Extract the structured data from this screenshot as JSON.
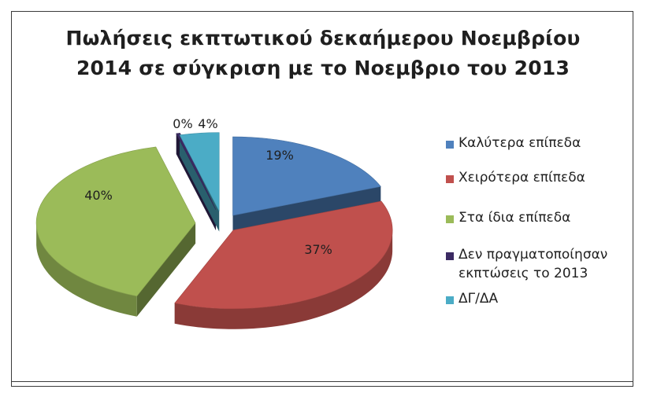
{
  "chart_data": {
    "type": "pie",
    "title_lines": [
      "Πωλήσεις εκπτωτικού δεκαήμερου Νοεμβρίου",
      "2014 σε σύγκριση με το Νοεμβριο του 2013"
    ],
    "labels": [
      "Καλύτερα επίπεδα",
      "Χειρότερα επίπεδα",
      "Στα ίδια επίπεδα",
      "Δεν πραγματοποίησαν εκπτώσεις το 2013",
      "ΔΓ/ΔΑ"
    ],
    "legend_lines": [
      [
        "Καλύτερα επίπεδα"
      ],
      [
        "Χειρότερα επίπεδα"
      ],
      [
        "Στα ίδια επίπεδα"
      ],
      [
        "Δεν πραγματοποίησαν",
        "εκπτώσεις το 2013"
      ],
      [
        "ΔΓ/ΔΑ"
      ]
    ],
    "values": [
      19,
      37,
      40,
      0,
      4
    ],
    "value_labels": [
      "19%",
      "37%",
      "40%",
      "0%",
      "4%"
    ],
    "colors": [
      "#4f81bd",
      "#c0504d",
      "#9bbb59",
      "#3b2a63",
      "#4bacc6"
    ],
    "legend_position": "right",
    "style": "3d-exploded"
  }
}
